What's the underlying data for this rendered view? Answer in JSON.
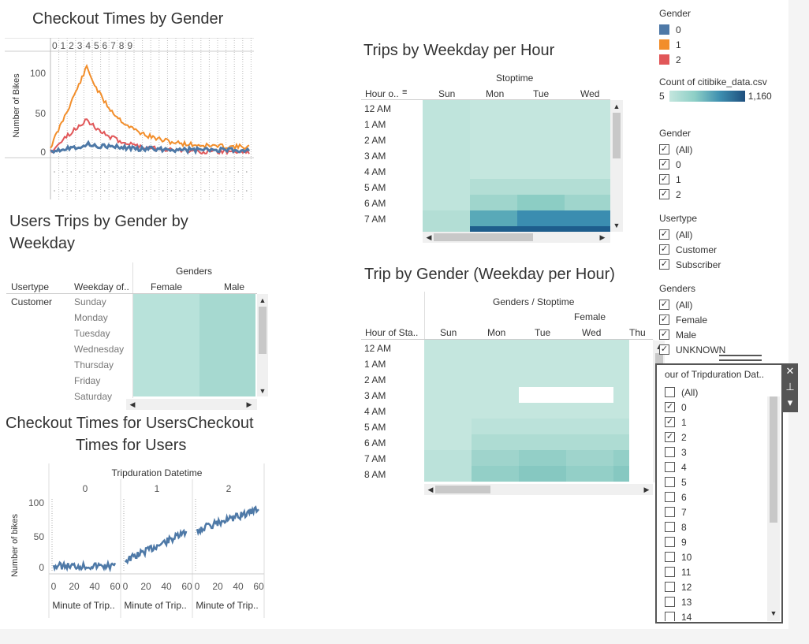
{
  "charts": {
    "checkout_gender": {
      "title": "Checkout Times by Gender",
      "ylabel": "Number of Bikes",
      "yticks": [
        "100",
        "50",
        "0"
      ],
      "top_labels": [
        "0",
        "1",
        "2",
        "3",
        "4",
        "5",
        "6",
        "7",
        "8",
        "9"
      ]
    },
    "users_trips": {
      "title_line1": "Users Trips by Gender by",
      "title_line2": "Weekday",
      "col_group": "Genders",
      "col_usertype": "Usertype",
      "col_weekday": "Weekday of..",
      "col_female": "Female",
      "col_male": "Male",
      "usertype_value": "Customer",
      "weekdays": [
        "Sunday",
        "Monday",
        "Tuesday",
        "Wednesday",
        "Thursday",
        "Friday",
        "Saturday"
      ]
    },
    "checkout_users": {
      "title_line1": "Checkout Times for UsersCheckout",
      "title_line2": "Times for Users",
      "group_label": "Tripduration Datetime",
      "panels": [
        "0",
        "1",
        "2"
      ],
      "ylabel": "Number of bikes",
      "yticks": [
        "100",
        "50",
        "0"
      ],
      "xticks": [
        "0",
        "20",
        "40",
        "60"
      ],
      "xlabel": "Minute of Trip.."
    },
    "trips_weekday": {
      "title": "Trips by Weekday per Hour",
      "col_group": "Stoptime",
      "row_header": "Hour o..",
      "days": [
        "Sun",
        "Mon",
        "Tue",
        "Wed"
      ],
      "hours": [
        "12 AM",
        "1 AM",
        "2 AM",
        "3 AM",
        "4 AM",
        "5 AM",
        "6 AM",
        "7 AM"
      ]
    },
    "trip_gender": {
      "title": "Trip by Gender (Weekday per Hour)",
      "col_group": "Genders / Stoptime",
      "gender": "Female",
      "row_header": "Hour of Sta..",
      "days": [
        "Sun",
        "Mon",
        "Tue",
        "Wed",
        "Thu"
      ],
      "hours": [
        "12 AM",
        "1 AM",
        "2 AM",
        "3 AM",
        "4 AM",
        "5 AM",
        "6 AM",
        "7 AM",
        "8 AM"
      ]
    }
  },
  "legend": {
    "gender_title": "Gender",
    "gender_items": [
      {
        "label": "0",
        "color": "#4e79a7"
      },
      {
        "label": "1",
        "color": "#f28e2b"
      },
      {
        "label": "2",
        "color": "#e15759"
      }
    ],
    "count_title": "Count of citibike_data.csv",
    "count_min": "5",
    "count_max": "1,160"
  },
  "filters": {
    "gender": {
      "title": "Gender",
      "items": [
        "(All)",
        "0",
        "1",
        "2"
      ]
    },
    "usertype": {
      "title": "Usertype",
      "items": [
        "(All)",
        "Customer",
        "Subscriber"
      ]
    },
    "genders": {
      "title": "Genders",
      "items": [
        "(All)",
        "Female",
        "Male",
        "UNKNOWN"
      ]
    }
  },
  "popup": {
    "title": "our of Tripduration Dat..",
    "items": [
      {
        "label": "(All)",
        "checked": false
      },
      {
        "label": "0",
        "checked": true
      },
      {
        "label": "1",
        "checked": true
      },
      {
        "label": "2",
        "checked": true
      },
      {
        "label": "3",
        "checked": false
      },
      {
        "label": "4",
        "checked": false
      },
      {
        "label": "5",
        "checked": false
      },
      {
        "label": "6",
        "checked": false
      },
      {
        "label": "7",
        "checked": false
      },
      {
        "label": "8",
        "checked": false
      },
      {
        "label": "9",
        "checked": false
      },
      {
        "label": "10",
        "checked": false
      },
      {
        "label": "11",
        "checked": false
      },
      {
        "label": "12",
        "checked": false
      },
      {
        "label": "13",
        "checked": false
      },
      {
        "label": "14",
        "checked": false
      }
    ]
  },
  "colors": {
    "series0": "#4e79a7",
    "series1": "#f28e2b",
    "series2": "#e15759",
    "heat_low": "#c4e6de",
    "heat_high": "#2a6a96"
  },
  "icons": {
    "close": "close-icon",
    "pin": "pin-icon",
    "menu": "dropdown-menu-icon",
    "sort": "sort-icon"
  }
}
